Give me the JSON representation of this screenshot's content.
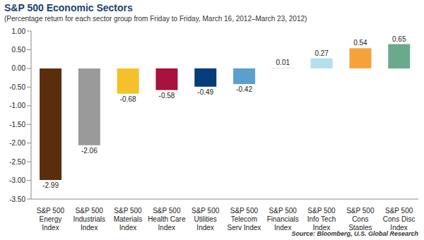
{
  "chart_data": {
    "type": "bar",
    "title": "S&P 500 Economic Sectors",
    "subtitle": "(Percentage return for each sector group from Friday to Friday, March 16, 2012–March 23, 2012)",
    "source": "Source: Bloomberg, U.S. Global Research",
    "categories": [
      "S&P 500 Energy Index",
      "S&P 500 Industrials Index",
      "S&P 500 Materials Index",
      "S&P 500 Health Care Index",
      "S&P 500 Utilities Index",
      "S&P 500 Telecom Serv Index",
      "S&P 500 Financials Index",
      "S&P 500 Info Tech Index",
      "S&P 500 Cons Staples Index",
      "S&P 500 Cons Disc Index"
    ],
    "values": [
      -2.99,
      -2.06,
      -0.68,
      -0.58,
      -0.49,
      -0.42,
      0.01,
      0.27,
      0.54,
      0.65
    ],
    "colors": [
      "#5a2d0c",
      "#9a9a9a",
      "#f5c02a",
      "#a8123c",
      "#063c7a",
      "#5b9fcf",
      "#b9cbe0",
      "#b3e0ec",
      "#f6a23a",
      "#6aa98d"
    ],
    "ylim": [
      -3.5,
      1
    ],
    "yticks": [
      {
        "value": -3.5,
        "label": "-3.50"
      },
      {
        "value": -3,
        "label": "-3.00"
      },
      {
        "value": -2.5,
        "label": "-2.50"
      },
      {
        "value": -2,
        "label": "-2.00"
      },
      {
        "value": -1.5,
        "label": "-1.50"
      },
      {
        "value": -1,
        "label": "-1.00"
      },
      {
        "value": -0.5,
        "label": "-0.50"
      },
      {
        "value": 0,
        "label": "0.00"
      },
      {
        "value": 0.5,
        "label": "0.50"
      },
      {
        "value": 1,
        "label": "1.00"
      }
    ],
    "data_labels": true,
    "grid": false
  }
}
